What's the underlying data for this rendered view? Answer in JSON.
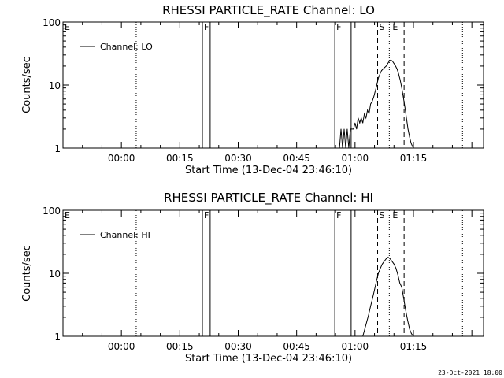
{
  "footer": {
    "timestamp": "23-Oct-2021 18:00"
  },
  "chart_data": [
    {
      "type": "line",
      "title": "RHESSI PARTICLE_RATE Channel: LO",
      "xlabel": "Start Time (13-Dec-04 23:46:10)",
      "ylabel": "Counts/sec",
      "y_scale": "log",
      "ylim": [
        1,
        100
      ],
      "y_ticks": [
        1,
        10,
        100
      ],
      "y_tick_labels": [
        "1",
        "10",
        "100"
      ],
      "x_unit": "minutes",
      "x_tick_labels": [
        "00:00",
        "00:15",
        "00:30",
        "00:45",
        "01:00",
        "01:15"
      ],
      "x_tick_values": [
        0,
        15,
        30,
        45,
        60,
        75
      ],
      "xlim": [
        -15,
        93
      ],
      "legend": {
        "position": "top-left",
        "label": "Channel: LO"
      },
      "markers": [
        {
          "label": "E",
          "x": -15,
          "style": "none"
        },
        {
          "label": "",
          "x": 3.8,
          "style": "dotted"
        },
        {
          "label": "F",
          "x": 20.8,
          "style": "solid"
        },
        {
          "label": "",
          "x": 22.8,
          "style": "solid"
        },
        {
          "label": "F",
          "x": 54.8,
          "style": "solid"
        },
        {
          "label": "",
          "x": 59.0,
          "style": "solid"
        },
        {
          "label": "S",
          "x": 65.8,
          "style": "dashed"
        },
        {
          "label": "",
          "x": 68.8,
          "style": "dotted"
        },
        {
          "label": "E",
          "x": 69.2,
          "style": "none"
        },
        {
          "label": "",
          "x": 72.6,
          "style": "dashed"
        },
        {
          "label": "",
          "x": 87.6,
          "style": "dotted"
        }
      ],
      "series": [
        {
          "x": [
            56.0,
            56.4,
            56.8,
            57.2,
            57.6,
            58.0,
            58.4,
            58.8,
            59.2,
            59.6,
            60.0,
            60.4,
            60.8,
            61.2,
            61.6,
            62.0,
            62.4,
            62.8,
            63.2,
            63.6,
            64.0,
            64.4,
            64.8,
            65.2,
            65.6,
            66.0,
            66.4,
            66.8,
            67.2,
            67.6,
            68.0,
            68.4,
            68.8,
            69.2,
            69.6,
            70.0,
            70.4,
            70.8,
            71.2,
            71.6,
            72.0,
            72.4,
            72.8,
            73.2,
            73.6,
            74.0,
            74.4,
            74.8,
            75.0
          ],
          "y": [
            1.0,
            2.0,
            1.0,
            2.0,
            1.0,
            2.0,
            1.0,
            2.0,
            2.0,
            2.0,
            2.5,
            2.0,
            3.0,
            2.5,
            3.0,
            2.5,
            3.5,
            3.0,
            4.0,
            3.5,
            5.0,
            5.5,
            6.5,
            8.0,
            10.0,
            13.0,
            15.0,
            17.0,
            18.0,
            19.0,
            20.0,
            22.0,
            24.0,
            25.0,
            24.0,
            22.0,
            20.0,
            18.0,
            15.0,
            12.0,
            9.0,
            6.5,
            4.5,
            3.0,
            2.0,
            1.5,
            1.2,
            1.05,
            1.0
          ]
        }
      ]
    },
    {
      "type": "line",
      "title": "RHESSI PARTICLE_RATE Channel: HI",
      "xlabel": "Start Time (13-Dec-04 23:46:10)",
      "ylabel": "Counts/sec",
      "y_scale": "log",
      "ylim": [
        1,
        100
      ],
      "y_ticks": [
        1,
        10,
        100
      ],
      "y_tick_labels": [
        "1",
        "10",
        "100"
      ],
      "x_unit": "minutes",
      "x_tick_labels": [
        "00:00",
        "00:15",
        "00:30",
        "00:45",
        "01:00",
        "01:15"
      ],
      "x_tick_values": [
        0,
        15,
        30,
        45,
        60,
        75
      ],
      "xlim": [
        -15,
        93
      ],
      "legend": {
        "position": "top-left",
        "label": "Channel: HI"
      },
      "markers": [
        {
          "label": "E",
          "x": -15,
          "style": "none"
        },
        {
          "label": "",
          "x": 3.8,
          "style": "dotted"
        },
        {
          "label": "F",
          "x": 20.8,
          "style": "solid"
        },
        {
          "label": "",
          "x": 22.8,
          "style": "solid"
        },
        {
          "label": "F",
          "x": 54.8,
          "style": "solid"
        },
        {
          "label": "",
          "x": 59.0,
          "style": "solid"
        },
        {
          "label": "S",
          "x": 65.8,
          "style": "dashed"
        },
        {
          "label": "",
          "x": 68.8,
          "style": "dotted"
        },
        {
          "label": "E",
          "x": 69.2,
          "style": "none"
        },
        {
          "label": "",
          "x": 72.6,
          "style": "dashed"
        },
        {
          "label": "",
          "x": 87.6,
          "style": "dotted"
        }
      ],
      "series": [
        {
          "x": [
            62.0,
            62.5,
            63.0,
            63.5,
            64.0,
            64.5,
            65.0,
            65.5,
            66.0,
            66.5,
            67.0,
            67.5,
            68.0,
            68.5,
            69.0,
            69.5,
            70.0,
            70.5,
            71.0,
            71.5,
            72.0,
            72.5,
            73.0,
            73.5,
            74.0,
            74.5,
            75.0
          ],
          "y": [
            1.0,
            1.3,
            1.7,
            2.2,
            3.0,
            4.0,
            5.5,
            7.5,
            10.0,
            12.0,
            14.0,
            15.5,
            17.0,
            18.0,
            17.0,
            15.5,
            14.0,
            12.0,
            9.5,
            7.0,
            6.0,
            4.0,
            2.6,
            1.8,
            1.3,
            1.1,
            1.0
          ]
        }
      ]
    }
  ]
}
